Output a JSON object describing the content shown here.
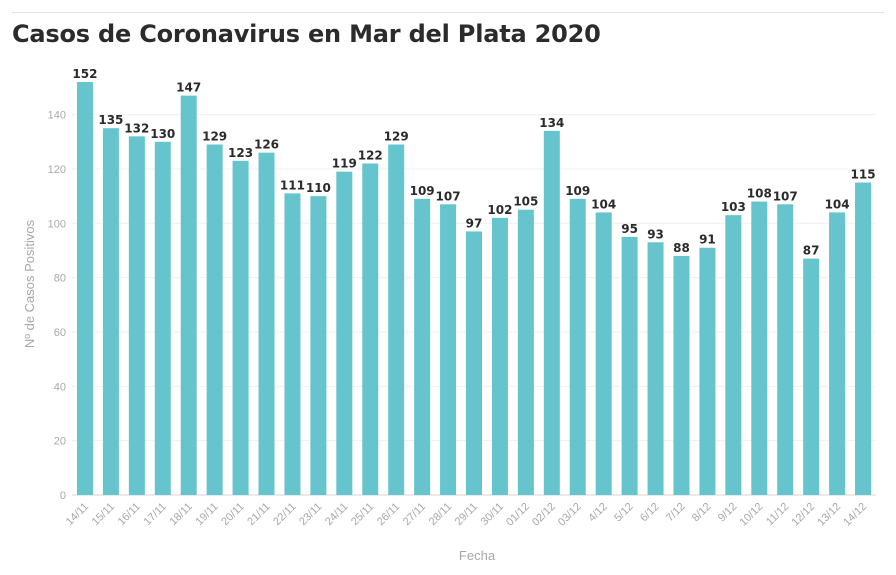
{
  "chart_data": {
    "type": "bar",
    "title": "Casos de Coronavirus en Mar del Plata 2020",
    "xlabel": "Fecha",
    "ylabel": "Nº de Casos Positivos",
    "ylim": [
      0,
      152
    ],
    "yticks": [
      0,
      20,
      40,
      60,
      80,
      100,
      120,
      140
    ],
    "grid": "horizontal",
    "bar_color": "#66c4cc",
    "categories": [
      "14/11",
      "15/11",
      "16/11",
      "17/11",
      "18/11",
      "19/11",
      "20/11",
      "21/11",
      "22/11",
      "23/11",
      "24/11",
      "25/11",
      "26/11",
      "27/11",
      "28/11",
      "29/11",
      "30/11",
      "01/12",
      "02/12",
      "03/12",
      "4/12",
      "5/12",
      "6/12",
      "7/12",
      "8/12",
      "9/12",
      "10/12",
      "11/12",
      "12/12",
      "13/12",
      "14/12"
    ],
    "values": [
      152,
      135,
      132,
      130,
      147,
      129,
      123,
      126,
      111,
      110,
      119,
      122,
      129,
      109,
      107,
      97,
      102,
      105,
      134,
      109,
      104,
      95,
      93,
      88,
      91,
      103,
      108,
      107,
      87,
      104,
      115
    ]
  }
}
